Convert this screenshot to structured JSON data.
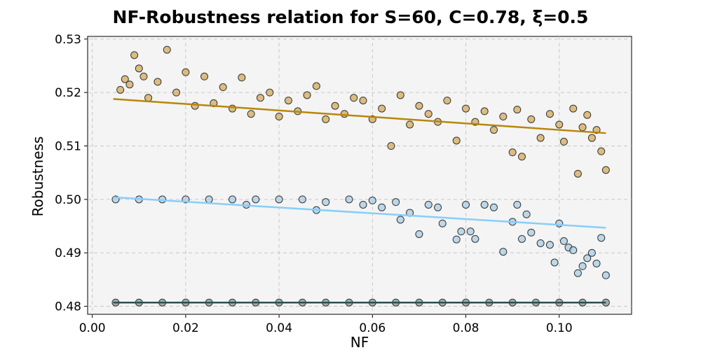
{
  "chart_data": {
    "type": "scatter",
    "title": "NF-Robustness relation for S=60, C=0.78, ξ=0.5",
    "xlabel": "NF",
    "ylabel": "Robustness",
    "xlim": [
      -0.001,
      0.1155
    ],
    "ylim": [
      0.4785,
      0.5305
    ],
    "xticks": [
      0.0,
      0.02,
      0.04,
      0.06,
      0.08,
      0.1
    ],
    "xtick_labels": [
      "0.00",
      "0.02",
      "0.04",
      "0.06",
      "0.08",
      "0.10"
    ],
    "yticks": [
      0.48,
      0.49,
      0.5,
      0.51,
      0.52,
      0.53
    ],
    "ytick_labels": [
      "0.48",
      "0.49",
      "0.50",
      "0.51",
      "0.52",
      "0.53"
    ],
    "grid": true,
    "series": [
      {
        "color": "#b8860b",
        "marker_fill": "#d4aa5a",
        "points": [
          [
            0.006,
            0.5205
          ],
          [
            0.007,
            0.5225
          ],
          [
            0.008,
            0.5215
          ],
          [
            0.009,
            0.527
          ],
          [
            0.01,
            0.5245
          ],
          [
            0.011,
            0.523
          ],
          [
            0.012,
            0.519
          ],
          [
            0.014,
            0.522
          ],
          [
            0.016,
            0.528
          ],
          [
            0.018,
            0.52
          ],
          [
            0.02,
            0.5238
          ],
          [
            0.022,
            0.5175
          ],
          [
            0.024,
            0.523
          ],
          [
            0.026,
            0.518
          ],
          [
            0.028,
            0.521
          ],
          [
            0.03,
            0.517
          ],
          [
            0.032,
            0.5228
          ],
          [
            0.034,
            0.516
          ],
          [
            0.036,
            0.519
          ],
          [
            0.038,
            0.52
          ],
          [
            0.04,
            0.5155
          ],
          [
            0.042,
            0.5185
          ],
          [
            0.044,
            0.5165
          ],
          [
            0.046,
            0.5195
          ],
          [
            0.048,
            0.5212
          ],
          [
            0.05,
            0.515
          ],
          [
            0.052,
            0.5175
          ],
          [
            0.054,
            0.516
          ],
          [
            0.056,
            0.519
          ],
          [
            0.058,
            0.5185
          ],
          [
            0.06,
            0.515
          ],
          [
            0.062,
            0.517
          ],
          [
            0.064,
            0.51
          ],
          [
            0.066,
            0.5195
          ],
          [
            0.068,
            0.514
          ],
          [
            0.07,
            0.5175
          ],
          [
            0.072,
            0.516
          ],
          [
            0.074,
            0.5145
          ],
          [
            0.076,
            0.5185
          ],
          [
            0.078,
            0.511
          ],
          [
            0.08,
            0.517
          ],
          [
            0.082,
            0.5145
          ],
          [
            0.084,
            0.5165
          ],
          [
            0.086,
            0.513
          ],
          [
            0.088,
            0.5155
          ],
          [
            0.09,
            0.5088
          ],
          [
            0.091,
            0.5168
          ],
          [
            0.092,
            0.508
          ],
          [
            0.094,
            0.515
          ],
          [
            0.096,
            0.5115
          ],
          [
            0.098,
            0.516
          ],
          [
            0.1,
            0.514
          ],
          [
            0.101,
            0.5108
          ],
          [
            0.103,
            0.517
          ],
          [
            0.104,
            0.5048
          ],
          [
            0.105,
            0.5135
          ],
          [
            0.106,
            0.5158
          ],
          [
            0.107,
            0.5115
          ],
          [
            0.108,
            0.513
          ],
          [
            0.109,
            0.509
          ],
          [
            0.11,
            0.5055
          ]
        ],
        "trend": [
          [
            0.0045,
            0.5188
          ],
          [
            0.11,
            0.5124
          ]
        ]
      },
      {
        "color": "#87cefa",
        "marker_fill": "#a9cde6",
        "points": [
          [
            0.005,
            0.5
          ],
          [
            0.01,
            0.5
          ],
          [
            0.015,
            0.5
          ],
          [
            0.02,
            0.5
          ],
          [
            0.025,
            0.5
          ],
          [
            0.03,
            0.5
          ],
          [
            0.033,
            0.499
          ],
          [
            0.035,
            0.5
          ],
          [
            0.04,
            0.5
          ],
          [
            0.045,
            0.5
          ],
          [
            0.048,
            0.498
          ],
          [
            0.05,
            0.4995
          ],
          [
            0.055,
            0.5
          ],
          [
            0.058,
            0.499
          ],
          [
            0.06,
            0.4998
          ],
          [
            0.062,
            0.4985
          ],
          [
            0.065,
            0.4995
          ],
          [
            0.066,
            0.4962
          ],
          [
            0.068,
            0.4975
          ],
          [
            0.07,
            0.4935
          ],
          [
            0.072,
            0.499
          ],
          [
            0.074,
            0.4985
          ],
          [
            0.075,
            0.4955
          ],
          [
            0.078,
            0.4925
          ],
          [
            0.079,
            0.494
          ],
          [
            0.08,
            0.499
          ],
          [
            0.081,
            0.494
          ],
          [
            0.082,
            0.4926
          ],
          [
            0.084,
            0.499
          ],
          [
            0.086,
            0.4985
          ],
          [
            0.088,
            0.4902
          ],
          [
            0.09,
            0.4958
          ],
          [
            0.091,
            0.499
          ],
          [
            0.092,
            0.4926
          ],
          [
            0.093,
            0.4972
          ],
          [
            0.094,
            0.4938
          ],
          [
            0.096,
            0.4918
          ],
          [
            0.098,
            0.4915
          ],
          [
            0.099,
            0.4882
          ],
          [
            0.1,
            0.4955
          ],
          [
            0.101,
            0.4922
          ],
          [
            0.102,
            0.491
          ],
          [
            0.103,
            0.4905
          ],
          [
            0.104,
            0.4862
          ],
          [
            0.105,
            0.4875
          ],
          [
            0.106,
            0.489
          ],
          [
            0.107,
            0.49
          ],
          [
            0.108,
            0.488
          ],
          [
            0.109,
            0.4928
          ],
          [
            0.11,
            0.4858
          ]
        ],
        "trend": [
          [
            0.0045,
            0.5004
          ],
          [
            0.11,
            0.4947
          ]
        ]
      },
      {
        "color": "#2f4f4f",
        "marker_fill": "#7f9a9a",
        "points": [
          [
            0.005,
            0.4807
          ],
          [
            0.01,
            0.4807
          ],
          [
            0.015,
            0.4807
          ],
          [
            0.02,
            0.4807
          ],
          [
            0.025,
            0.4807
          ],
          [
            0.03,
            0.4807
          ],
          [
            0.035,
            0.4807
          ],
          [
            0.04,
            0.4807
          ],
          [
            0.045,
            0.4807
          ],
          [
            0.05,
            0.4807
          ],
          [
            0.055,
            0.4807
          ],
          [
            0.06,
            0.4807
          ],
          [
            0.065,
            0.4807
          ],
          [
            0.07,
            0.4807
          ],
          [
            0.075,
            0.4807
          ],
          [
            0.08,
            0.4807
          ],
          [
            0.085,
            0.4807
          ],
          [
            0.09,
            0.4807
          ],
          [
            0.095,
            0.4807
          ],
          [
            0.1,
            0.4807
          ],
          [
            0.105,
            0.4807
          ],
          [
            0.11,
            0.4807
          ]
        ],
        "trend": [
          [
            0.0045,
            0.4807
          ],
          [
            0.11,
            0.4807
          ]
        ]
      }
    ]
  }
}
